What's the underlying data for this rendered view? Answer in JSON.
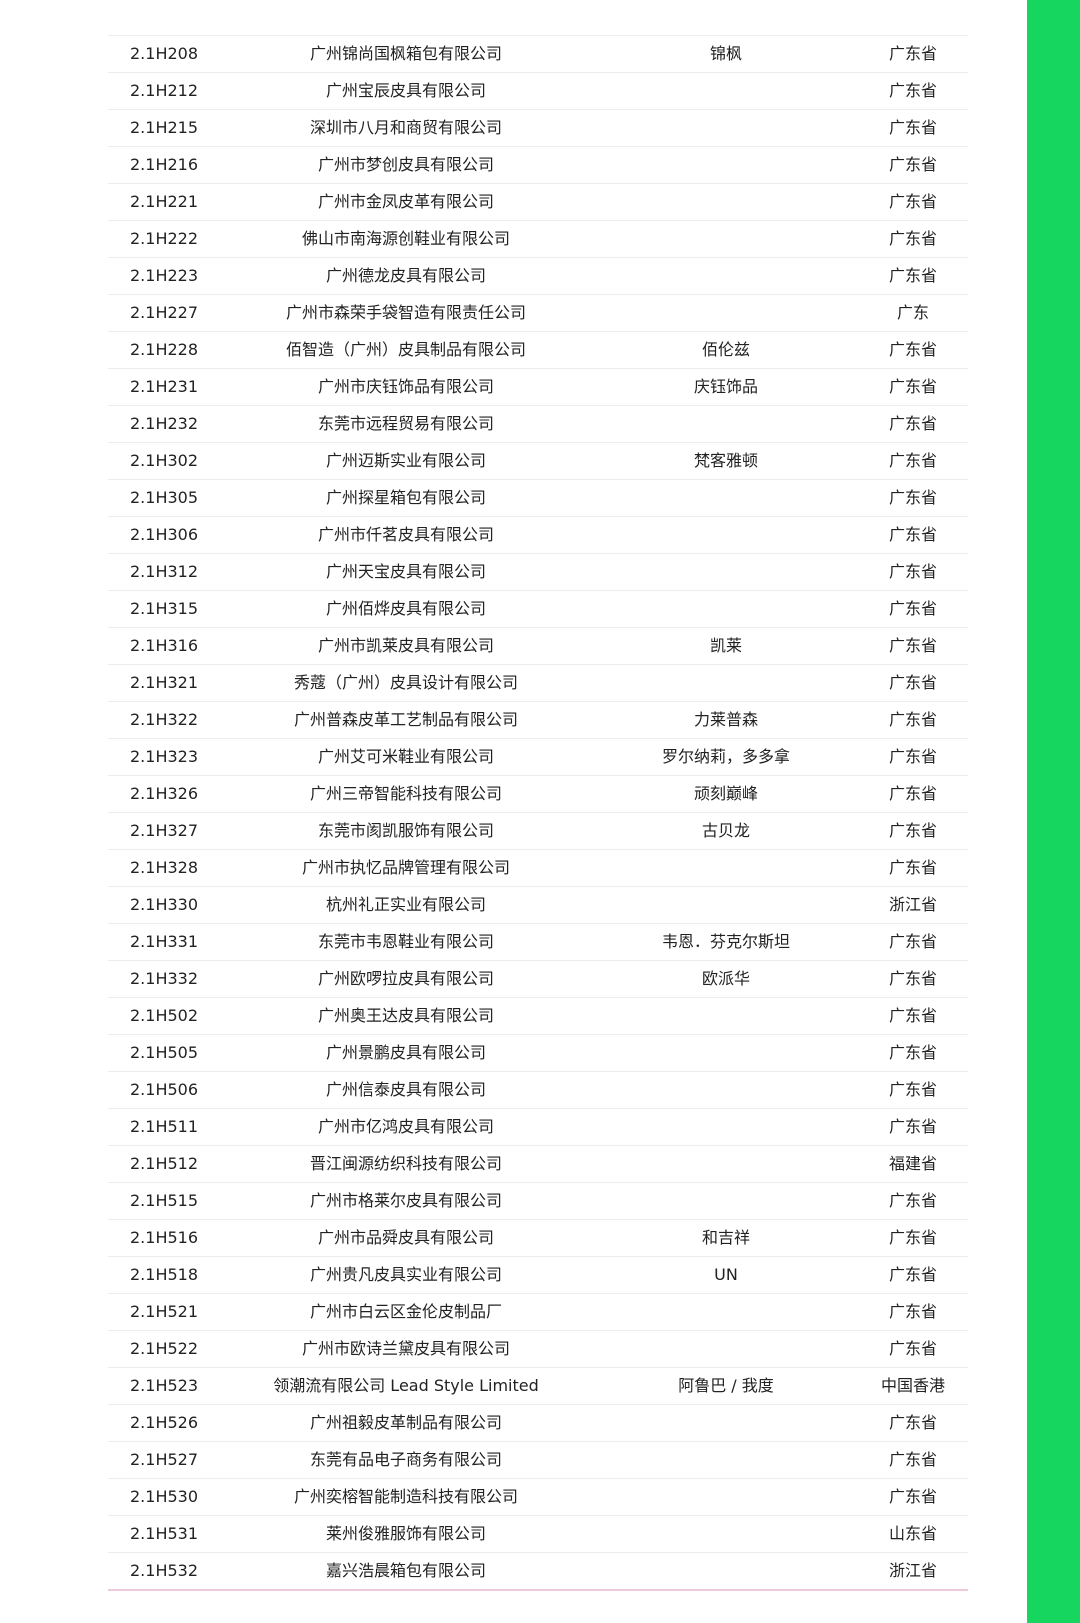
{
  "accent_color": "#17d65f",
  "rows": [
    [
      "2.1H208",
      "广州锦尚国枫箱包有限公司",
      "锦枫",
      "广东省"
    ],
    [
      "2.1H212",
      "广州宝辰皮具有限公司",
      "",
      "广东省"
    ],
    [
      "2.1H215",
      "深圳市八月和商贸有限公司",
      "",
      "广东省"
    ],
    [
      "2.1H216",
      "广州市梦创皮具有限公司",
      "",
      "广东省"
    ],
    [
      "2.1H221",
      "广州市金凤皮革有限公司",
      "",
      "广东省"
    ],
    [
      "2.1H222",
      "佛山市南海源创鞋业有限公司",
      "",
      "广东省"
    ],
    [
      "2.1H223",
      "广州德龙皮具有限公司",
      "",
      "广东省"
    ],
    [
      "2.1H227",
      "广州市森荣手袋智造有限责任公司",
      "",
      "广东"
    ],
    [
      "2.1H228",
      "佰智造（广州）皮具制品有限公司",
      "佰伦兹",
      "广东省"
    ],
    [
      "2.1H231",
      "广州市庆钰饰品有限公司",
      "庆钰饰品",
      "广东省"
    ],
    [
      "2.1H232",
      "东莞市远程贸易有限公司",
      "",
      "广东省"
    ],
    [
      "2.1H302",
      "广州迈斯实业有限公司",
      "梵客雅顿",
      "广东省"
    ],
    [
      "2.1H305",
      "广州探星箱包有限公司",
      "",
      "广东省"
    ],
    [
      "2.1H306",
      "广州市仟茗皮具有限公司",
      "",
      "广东省"
    ],
    [
      "2.1H312",
      "广州天宝皮具有限公司",
      "",
      "广东省"
    ],
    [
      "2.1H315",
      "广州佰烨皮具有限公司",
      "",
      "广东省"
    ],
    [
      "2.1H316",
      "广州市凯莱皮具有限公司",
      "凯莱",
      "广东省"
    ],
    [
      "2.1H321",
      "秀蔻（广州）皮具设计有限公司",
      "",
      "广东省"
    ],
    [
      "2.1H322",
      "广州普森皮革工艺制品有限公司",
      "力莱普森",
      "广东省"
    ],
    [
      "2.1H323",
      "广州艾可米鞋业有限公司",
      "罗尔纳莉，多多拿",
      "广东省"
    ],
    [
      "2.1H326",
      "广州三帝智能科技有限公司",
      "顽刻巅峰",
      "广东省"
    ],
    [
      "2.1H327",
      "东莞市阂凯服饰有限公司",
      "古贝龙",
      "广东省"
    ],
    [
      "2.1H328",
      "广州市执忆品牌管理有限公司",
      "",
      "广东省"
    ],
    [
      "2.1H330",
      "杭州礼正实业有限公司",
      "",
      "浙江省"
    ],
    [
      "2.1H331",
      "东莞市韦恩鞋业有限公司",
      "韦恩．芬克尔斯坦",
      "广东省"
    ],
    [
      "2.1H332",
      "广州欧啰拉皮具有限公司",
      "欧派华",
      "广东省"
    ],
    [
      "2.1H502",
      "广州奥王达皮具有限公司",
      "",
      "广东省"
    ],
    [
      "2.1H505",
      "广州景鹏皮具有限公司",
      "",
      "广东省"
    ],
    [
      "2.1H506",
      "广州信泰皮具有限公司",
      "",
      "广东省"
    ],
    [
      "2.1H511",
      "广州市亿鸿皮具有限公司",
      "",
      "广东省"
    ],
    [
      "2.1H512",
      "晋江闽源纺织科技有限公司",
      "",
      "福建省"
    ],
    [
      "2.1H515",
      "广州市格莱尔皮具有限公司",
      "",
      "广东省"
    ],
    [
      "2.1H516",
      "广州市品舜皮具有限公司",
      "和吉祥",
      "广东省"
    ],
    [
      "2.1H518",
      "广州贵凡皮具实业有限公司",
      "UN",
      "广东省"
    ],
    [
      "2.1H521",
      "广州市白云区金伦皮制品厂",
      "",
      "广东省"
    ],
    [
      "2.1H522",
      "广州市欧诗兰黛皮具有限公司",
      "",
      "广东省"
    ],
    [
      "2.1H523",
      "领潮流有限公司 Lead Style Limited",
      "阿鲁巴 / 我度",
      "中国香港"
    ],
    [
      "2.1H526",
      "广州祖毅皮革制品有限公司",
      "",
      "广东省"
    ],
    [
      "2.1H527",
      "东莞有品电子商务有限公司",
      "",
      "广东省"
    ],
    [
      "2.1H530",
      "广州奕榕智能制造科技有限公司",
      "",
      "广东省"
    ],
    [
      "2.1H531",
      "莱州俊雅服饰有限公司",
      "",
      "山东省"
    ],
    [
      "2.1H532",
      "嘉兴浩晨箱包有限公司",
      "",
      "浙江省"
    ]
  ]
}
